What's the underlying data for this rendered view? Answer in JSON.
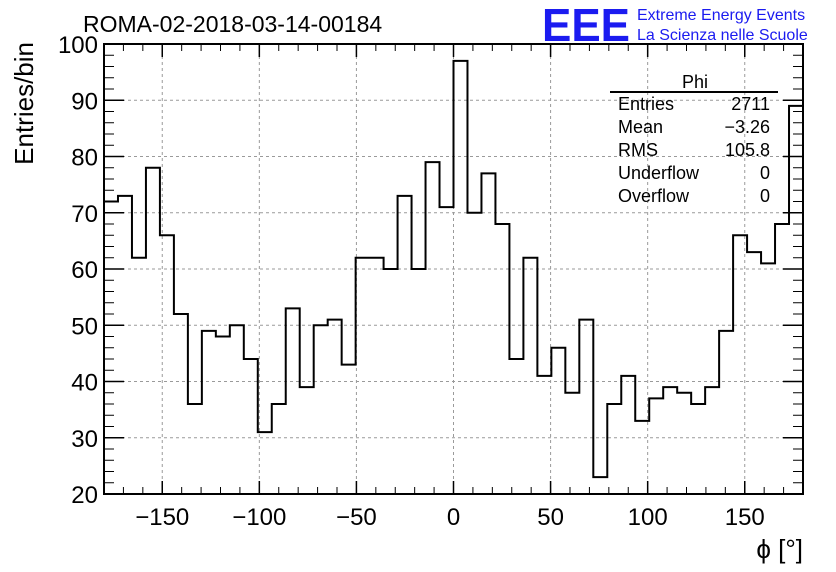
{
  "title": "ROMA-02-2018-03-14-00184",
  "logo": {
    "mark": "EEE",
    "line1": "Extreme Energy Events",
    "line2": "La Scienza nelle Scuole"
  },
  "stats": {
    "name": "Phi",
    "rows": [
      {
        "label": "Entries",
        "value": "2711"
      },
      {
        "label": "Mean",
        "value": "−3.26"
      },
      {
        "label": "RMS",
        "value": "105.8"
      },
      {
        "label": "Underflow",
        "value": "0"
      },
      {
        "label": "Overflow",
        "value": "0"
      }
    ]
  },
  "chart_data": {
    "type": "bar",
    "histogram": true,
    "title": "ROMA-02-2018-03-14-00184",
    "xlabel": "ϕ [°]",
    "ylabel": "Entries/bin",
    "xlim": [
      -180,
      180
    ],
    "ylim": [
      20,
      100
    ],
    "grid": true,
    "legend": "top-right",
    "line_color": "#000000",
    "bin_width": 7.2,
    "x_ticks": [
      {
        "value": -150,
        "label": "−150"
      },
      {
        "value": -100,
        "label": "−100"
      },
      {
        "value": -50,
        "label": "−50"
      },
      {
        "value": 0,
        "label": "0"
      },
      {
        "value": 50,
        "label": "50"
      },
      {
        "value": 100,
        "label": "100"
      },
      {
        "value": 150,
        "label": "150"
      }
    ],
    "y_ticks": [
      {
        "value": 20,
        "label": "20"
      },
      {
        "value": 30,
        "label": "30"
      },
      {
        "value": 40,
        "label": "40"
      },
      {
        "value": 50,
        "label": "50"
      },
      {
        "value": 60,
        "label": "60"
      },
      {
        "value": 70,
        "label": "70"
      },
      {
        "value": 80,
        "label": "80"
      },
      {
        "value": 90,
        "label": "90"
      },
      {
        "value": 100,
        "label": "100"
      }
    ],
    "values": [
      72,
      73,
      62,
      78,
      66,
      52,
      36,
      49,
      48,
      50,
      44,
      31,
      36,
      53,
      39,
      50,
      51,
      43,
      62,
      62,
      60,
      73,
      60,
      79,
      71,
      97,
      70,
      77,
      68,
      44,
      62,
      41,
      46,
      38,
      51,
      23,
      36,
      41,
      33,
      37,
      39,
      38,
      36,
      39,
      49,
      66,
      63,
      61,
      68,
      89
    ]
  },
  "colors": {
    "plot_line": "#000000",
    "grid": "#9a9a9a",
    "logo": "#1b1bf0"
  }
}
